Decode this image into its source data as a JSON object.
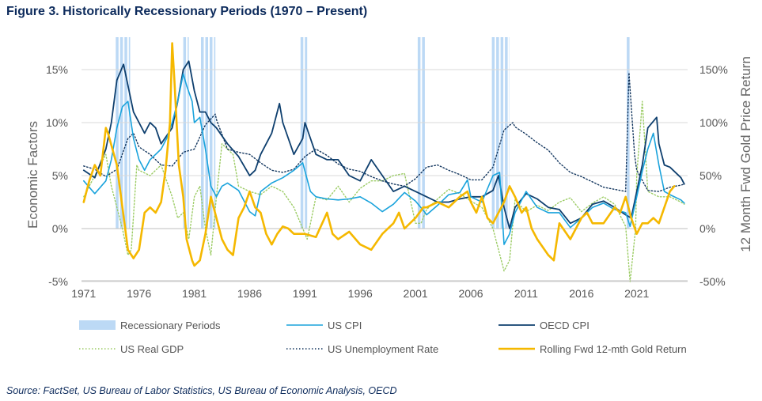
{
  "header": {
    "title": "Figure 3. Historically Recessionary Periods (1970 – Present)"
  },
  "footer": {
    "source": "Source: FactSet, US Bureau of Labor Statistics, US Bureau of Economic Analysis, OECD"
  },
  "colors": {
    "recession": "#bcd9f5",
    "us_cpi": "#1aa3dc",
    "oecd_cpi": "#0e3f6e",
    "us_gdp": "#9ccc65",
    "unemployment": "#14375f",
    "gold": "#f5b800",
    "grid": "#d9d9d9",
    "text": "#0d2b5c"
  },
  "chart_data": {
    "type": "line",
    "title": "Figure 3. Historically Recessionary Periods (1970 – Present)",
    "xlabel": "",
    "ylabel": "Economic Factors",
    "y2label": "12 Month Fwd Gold Price Return",
    "xlim": [
      1970.8,
      2025.6
    ],
    "ylim": [
      -5,
      18
    ],
    "y2lim": [
      -50,
      180
    ],
    "xticks": [
      1971,
      1976,
      1981,
      1986,
      1991,
      1996,
      2001,
      2006,
      2011,
      2016,
      2021
    ],
    "xtick_labels": [
      "1971",
      "1976",
      "1981",
      "1986",
      "1991",
      "1996",
      "2001",
      "2006",
      "2011",
      "2016",
      "2021"
    ],
    "yticks": [
      -5,
      0,
      5,
      10,
      15
    ],
    "ytick_labels": [
      "-5%",
      "0%",
      "5%",
      "10%",
      "15%"
    ],
    "y2ticks": [
      -50,
      0,
      50,
      100,
      150
    ],
    "y2tick_labels": [
      "-50%",
      "0%",
      "50%",
      "100%",
      "150%"
    ],
    "grid": true,
    "legend_position": "bottom",
    "legend": [
      "Recessionary Periods",
      "US CPI",
      "OECD CPI",
      "US Real GDP",
      "US Unemployment Rate",
      "Rolling Fwd 12-mth Gold Return"
    ],
    "recessions": [
      [
        1973.9,
        1975.2
      ],
      [
        1980.0,
        1980.5
      ],
      [
        1981.6,
        1982.9
      ],
      [
        1990.6,
        1991.2
      ],
      [
        2001.2,
        2001.9
      ],
      [
        2007.9,
        2009.5
      ],
      [
        2020.1,
        2020.4
      ]
    ],
    "series": [
      {
        "name": "US CPI",
        "axis": "left",
        "style": "solid",
        "x": [
          1971,
          1972,
          1973,
          1973.5,
          1974,
          1974.5,
          1975,
          1975.5,
          1976,
          1976.5,
          1977,
          1978,
          1978.5,
          1979,
          1979.5,
          1980,
          1980.3,
          1980.8,
          1981,
          1981.5,
          1982,
          1982.5,
          1983,
          1983.5,
          1984,
          1985,
          1986,
          1986.5,
          1987,
          1988,
          1989,
          1990,
          1990.8,
          1991.5,
          1992,
          1993,
          1994,
          1995,
          1996,
          1997,
          1998,
          1999,
          2000,
          2001,
          2001.8,
          2002,
          2003,
          2004,
          2005,
          2005.7,
          2006,
          2007,
          2008,
          2008.6,
          2009,
          2009.5,
          2010,
          2011,
          2012,
          2013,
          2014,
          2015,
          2016,
          2017,
          2018,
          2019,
          2020,
          2020.4,
          2021,
          2021.5,
          2022,
          2022.5,
          2023,
          2023.5,
          2024,
          2025,
          2025.3
        ],
        "y": [
          4.5,
          3.3,
          4.5,
          6.5,
          9.5,
          11.5,
          12,
          8.5,
          6.5,
          5.5,
          6.5,
          7.5,
          8.5,
          10,
          12,
          14.6,
          13.5,
          12,
          10,
          10.5,
          7.5,
          4,
          3,
          4,
          4.3,
          3.6,
          1.6,
          1.2,
          3.5,
          4.3,
          4.8,
          5.5,
          6.2,
          3.5,
          3,
          2.8,
          2.7,
          2.8,
          3,
          2.4,
          1.6,
          2.3,
          3.4,
          2.6,
          1.6,
          1.3,
          2.2,
          3.2,
          3.4,
          4.6,
          3,
          2.5,
          5,
          5.3,
          -1.5,
          -0.5,
          1.5,
          3.5,
          2,
          1.5,
          1.5,
          0.1,
          1,
          2,
          2.4,
          1.8,
          1.5,
          0.2,
          3,
          5.4,
          7.5,
          9,
          6,
          3.5,
          3.2,
          2.7,
          2.4
        ]
      },
      {
        "name": "OECD CPI",
        "axis": "left",
        "style": "solid",
        "x": [
          1971,
          1972,
          1973,
          1973.5,
          1974,
          1974.6,
          1975,
          1975.5,
          1976,
          1976.5,
          1977,
          1977.5,
          1978,
          1979,
          1979.5,
          1980,
          1980.5,
          1981,
          1981.5,
          1982,
          1982.5,
          1983,
          1984,
          1985,
          1986,
          1986.5,
          1987,
          1988,
          1988.7,
          1989,
          1990,
          1990.8,
          1991,
          1992,
          1993,
          1994,
          1995,
          1996,
          1997,
          1998,
          1999,
          2000,
          2001,
          2002,
          2003,
          2004,
          2005,
          2006,
          2007,
          2008,
          2008.5,
          2009,
          2009.5,
          2010,
          2011,
          2012,
          2013,
          2014,
          2015,
          2016,
          2017,
          2018,
          2019,
          2020,
          2020.5,
          2021,
          2021.5,
          2022,
          2022.8,
          2023,
          2023.5,
          2024,
          2025,
          2025.3
        ],
        "y": [
          5.5,
          4.8,
          7.5,
          10,
          14,
          15.5,
          13.5,
          11,
          10,
          9,
          10,
          9.5,
          8,
          9.5,
          12,
          15,
          15.8,
          13,
          11,
          11,
          10,
          9.5,
          8,
          6.8,
          5,
          5.5,
          7,
          9,
          11.8,
          10,
          7,
          8.5,
          10,
          7,
          6.5,
          6.5,
          5,
          4.5,
          6.5,
          5,
          3.5,
          4,
          3.5,
          3,
          2.5,
          2.5,
          2.8,
          3,
          3,
          3.6,
          5,
          2,
          0,
          2,
          3.3,
          2.8,
          2,
          1.8,
          0.5,
          1,
          2.3,
          2.6,
          2,
          1.3,
          1,
          3.5,
          6,
          9.5,
          10.5,
          8,
          6,
          5.8,
          4.8,
          4.2
        ]
      },
      {
        "name": "US Real GDP",
        "axis": "left",
        "style": "dotted",
        "x": [
          1971,
          1971.5,
          1972,
          1973,
          1973.5,
          1974,
          1974.5,
          1975,
          1975.3,
          1975.8,
          1976,
          1977,
          1978,
          1978.5,
          1979,
          1979.5,
          1980,
          1980.5,
          1981,
          1981.5,
          1982,
          1982.5,
          1983,
          1983.5,
          1984,
          1984.5,
          1985,
          1986,
          1987,
          1988,
          1989,
          1990,
          1990.8,
          1991.2,
          1992,
          1993,
          1994,
          1995,
          1996,
          1997,
          1998,
          1999,
          2000,
          2001,
          2001.5,
          2002,
          2003,
          2004,
          2005,
          2006,
          2007,
          2008,
          2008.5,
          2009,
          2009.5,
          2010,
          2011,
          2012,
          2013,
          2014,
          2015,
          2016,
          2017,
          2018,
          2019,
          2020,
          2020.4,
          2020.9,
          2021,
          2021.5,
          2022,
          2023,
          2024,
          2025,
          2025.3
        ],
        "y": [
          3,
          4,
          5,
          7,
          4,
          2,
          0,
          -2.5,
          -2,
          6,
          5.5,
          5,
          6,
          4.5,
          3,
          1,
          1.5,
          -1,
          3,
          4,
          0,
          -2.5,
          3,
          8,
          7.5,
          7,
          4,
          3.5,
          3.2,
          4,
          3.5,
          2,
          0,
          -1,
          3,
          2.7,
          4,
          2.5,
          3.8,
          4.5,
          4.5,
          5,
          5.2,
          0.5,
          0.5,
          1.8,
          2.8,
          3.7,
          3.3,
          2.6,
          2,
          0,
          -2,
          -4,
          -3,
          2.7,
          1.6,
          2.2,
          1.7,
          2.5,
          2.9,
          1.6,
          2.4,
          3,
          2.3,
          0.2,
          -5,
          0,
          5,
          12,
          3.5,
          3,
          3,
          2.5,
          2.3
        ]
      },
      {
        "name": "US Unemployment Rate",
        "axis": "left",
        "style": "dotted",
        "x": [
          1971,
          1972,
          1973,
          1974,
          1975,
          1975.5,
          1976,
          1977,
          1978,
          1979,
          1980,
          1981,
          1982,
          1982.9,
          1983,
          1984,
          1985,
          1986,
          1987,
          1988,
          1989,
          1990,
          1991,
          1992,
          1993,
          1994,
          1995,
          1996,
          1997,
          1998,
          1999,
          2000,
          2001,
          2002,
          2003,
          2004,
          2005,
          2006,
          2007,
          2008,
          2009,
          2009.8,
          2010,
          2011,
          2012,
          2013,
          2014,
          2015,
          2016,
          2017,
          2018,
          2019,
          2020,
          2020.3,
          2020.8,
          2021,
          2022,
          2023,
          2024,
          2025,
          2025.3
        ],
        "y": [
          5.9,
          5.6,
          4.9,
          5.6,
          8.5,
          9,
          7.7,
          7,
          6,
          5.9,
          7.2,
          7.5,
          9.8,
          10.8,
          10.3,
          7.5,
          7.2,
          7,
          6.2,
          5.5,
          5.3,
          5.6,
          6.8,
          7.5,
          6.9,
          6.1,
          5.6,
          5.4,
          4.9,
          4.5,
          4.2,
          4,
          4.7,
          5.8,
          6,
          5.5,
          5.1,
          4.6,
          4.6,
          5.8,
          9.3,
          10,
          9.6,
          8.9,
          8.1,
          7.4,
          6.2,
          5.3,
          4.9,
          4.4,
          3.9,
          3.7,
          3.5,
          14.7,
          7,
          5.5,
          3.6,
          3.5,
          3.9,
          4.1,
          4.2
        ]
      },
      {
        "name": "Rolling Fwd 12-mth Gold Return",
        "axis": "right",
        "style": "solid",
        "x": [
          1971,
          1971.5,
          1972,
          1972.5,
          1973,
          1973.2,
          1973.6,
          1974,
          1974.5,
          1975,
          1975.5,
          1976,
          1976.5,
          1977,
          1977.5,
          1978,
          1978.4,
          1978.8,
          1979,
          1979.2,
          1979.6,
          1980,
          1980.3,
          1980.8,
          1981,
          1981.5,
          1982,
          1982.5,
          1983,
          1983.5,
          1984,
          1984.5,
          1985,
          1985.5,
          1986,
          1986.5,
          1987,
          1987.5,
          1988,
          1988.5,
          1989,
          1989.5,
          1990,
          1991,
          1992,
          1993,
          1993.5,
          1994,
          1995,
          1996,
          1997,
          1998,
          1999,
          1999.5,
          2000,
          2001,
          2001.7,
          2002,
          2003,
          2004,
          2005,
          2005.7,
          2006,
          2006.5,
          2007,
          2007.5,
          2008,
          2008.5,
          2009,
          2009.5,
          2010,
          2010.6,
          2011,
          2011.5,
          2012,
          2013,
          2013.5,
          2014,
          2015,
          2016,
          2016.5,
          2017,
          2018,
          2019,
          2019.5,
          2020,
          2020.5,
          2021,
          2021.5,
          2022,
          2022.5,
          2023,
          2023.5,
          2024,
          2024.4
        ],
        "y": [
          25,
          45,
          60,
          50,
          95,
          90,
          75,
          60,
          20,
          -20,
          -28,
          -20,
          15,
          20,
          15,
          25,
          55,
          100,
          175,
          140,
          60,
          30,
          -10,
          -30,
          -35,
          -30,
          -5,
          30,
          10,
          -10,
          -20,
          -25,
          10,
          20,
          35,
          20,
          15,
          -5,
          -15,
          -5,
          2,
          0,
          -5,
          -5,
          -8,
          15,
          -5,
          -10,
          -3,
          -15,
          -20,
          -5,
          5,
          15,
          0,
          10,
          20,
          20,
          25,
          20,
          30,
          35,
          25,
          15,
          30,
          10,
          5,
          15,
          25,
          40,
          30,
          15,
          20,
          0,
          -10,
          -25,
          -30,
          5,
          -10,
          10,
          15,
          5,
          5,
          20,
          15,
          30,
          10,
          -5,
          5,
          5,
          10,
          5,
          20,
          35,
          40
        ]
      }
    ]
  }
}
